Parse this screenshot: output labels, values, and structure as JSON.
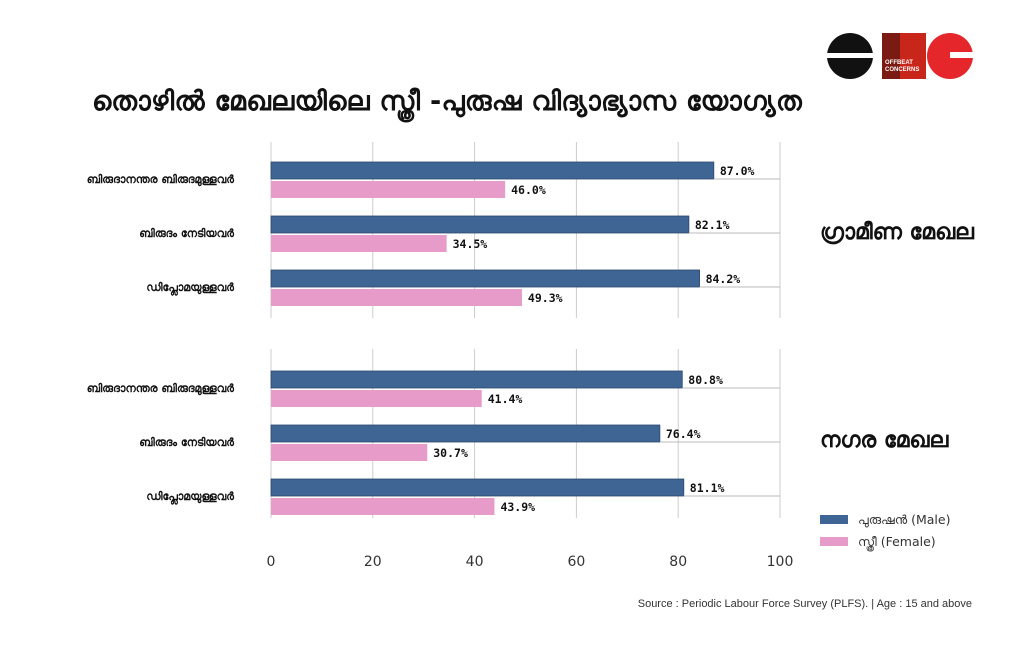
{
  "title": "തൊഴിൽ മേഖലയിലെ സ്ത്രീ -പുരുഷ വിദ്യാഭ്യാസ യോഗ്യത",
  "logo": {
    "text_1": "OFFBEAT",
    "text_2": "CONCERNS"
  },
  "source": "Source : Periodic Labour Force Survey (PLFS). | Age : 15 and above",
  "colors": {
    "male": "#3e6593",
    "female": "#e79bc9",
    "grid": "#cccccc"
  },
  "chart_data": [
    {
      "type": "bar",
      "orientation": "horizontal",
      "panel_label": "ഗ്രാമീണ മേഖല",
      "categories": [
        "ബിരുദാനന്തര ബിരുദമുള്ളവർ",
        "ബിരുദം നേടിയവർ",
        "ഡിപ്ലോമയുള്ളവർ"
      ],
      "series": [
        {
          "name": "പുരുഷൻ (Male)",
          "values": [
            87.0,
            82.1,
            84.2
          ],
          "labels": [
            "87.0%",
            "82.1%",
            "84.2%"
          ]
        },
        {
          "name": "സ്ത്രീ (Female)",
          "values": [
            46.0,
            34.5,
            49.3
          ],
          "labels": [
            "46.0%",
            "34.5%",
            "49.3%"
          ]
        }
      ],
      "xlim": [
        0,
        100
      ],
      "grid": true
    },
    {
      "type": "bar",
      "orientation": "horizontal",
      "panel_label": "നഗര മേഖല",
      "categories": [
        "ബിരുദാനന്തര ബിരുദമുള്ളവർ",
        "ബിരുദം നേടിയവർ",
        "ഡിപ്ലോമയുള്ളവർ"
      ],
      "series": [
        {
          "name": "പുരുഷൻ (Male)",
          "values": [
            80.8,
            76.4,
            81.1
          ],
          "labels": [
            "80.8%",
            "76.4%",
            "81.1%"
          ]
        },
        {
          "name": "സ്ത്രീ (Female)",
          "values": [
            41.4,
            30.7,
            43.9
          ],
          "labels": [
            "41.4%",
            "30.7%",
            "43.9%"
          ]
        }
      ],
      "xlim": [
        0,
        100
      ],
      "xticks": [
        "0",
        "20",
        "40",
        "60",
        "80",
        "100"
      ],
      "grid": true,
      "legend_position": "bottom-right"
    }
  ]
}
